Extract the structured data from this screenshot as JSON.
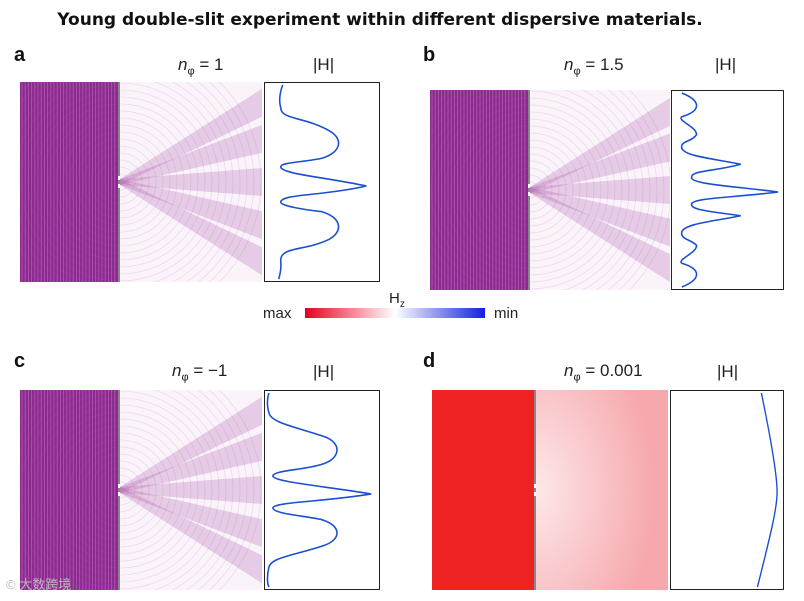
{
  "figure": {
    "caption": "Young double-slit experiment within different dispersive materials."
  },
  "panels": [
    {
      "label": "a",
      "n_value": "= 1",
      "h_label": "|H|",
      "colors": {
        "source": "#8a2a8e",
        "wave": "#b060b0"
      }
    },
    {
      "label": "b",
      "n_value": "= 1.5",
      "h_label": "|H|",
      "colors": {
        "source": "#8a2a8e",
        "wave": "#b060b0"
      }
    },
    {
      "label": "c",
      "n_value": "= −1",
      "h_label": "|H|",
      "colors": {
        "source": "#8a2a8e",
        "wave": "#b060b0"
      }
    },
    {
      "label": "d",
      "n_value": "= 0.001",
      "h_label": "|H|",
      "colors": {
        "source": "#ee2222",
        "wave": "#f6a8ad"
      }
    }
  ],
  "n_symbol": "n",
  "n_subscript": "φ",
  "colorbar": {
    "title": "H",
    "title_sub": "z",
    "min_label": "min",
    "max_label": "max",
    "colors": {
      "max": "#e8001e",
      "mid": "#ffffff",
      "min": "#1020e0"
    }
  },
  "watermark": "© 大数跨境",
  "curve_color": "#1a4fd0"
}
